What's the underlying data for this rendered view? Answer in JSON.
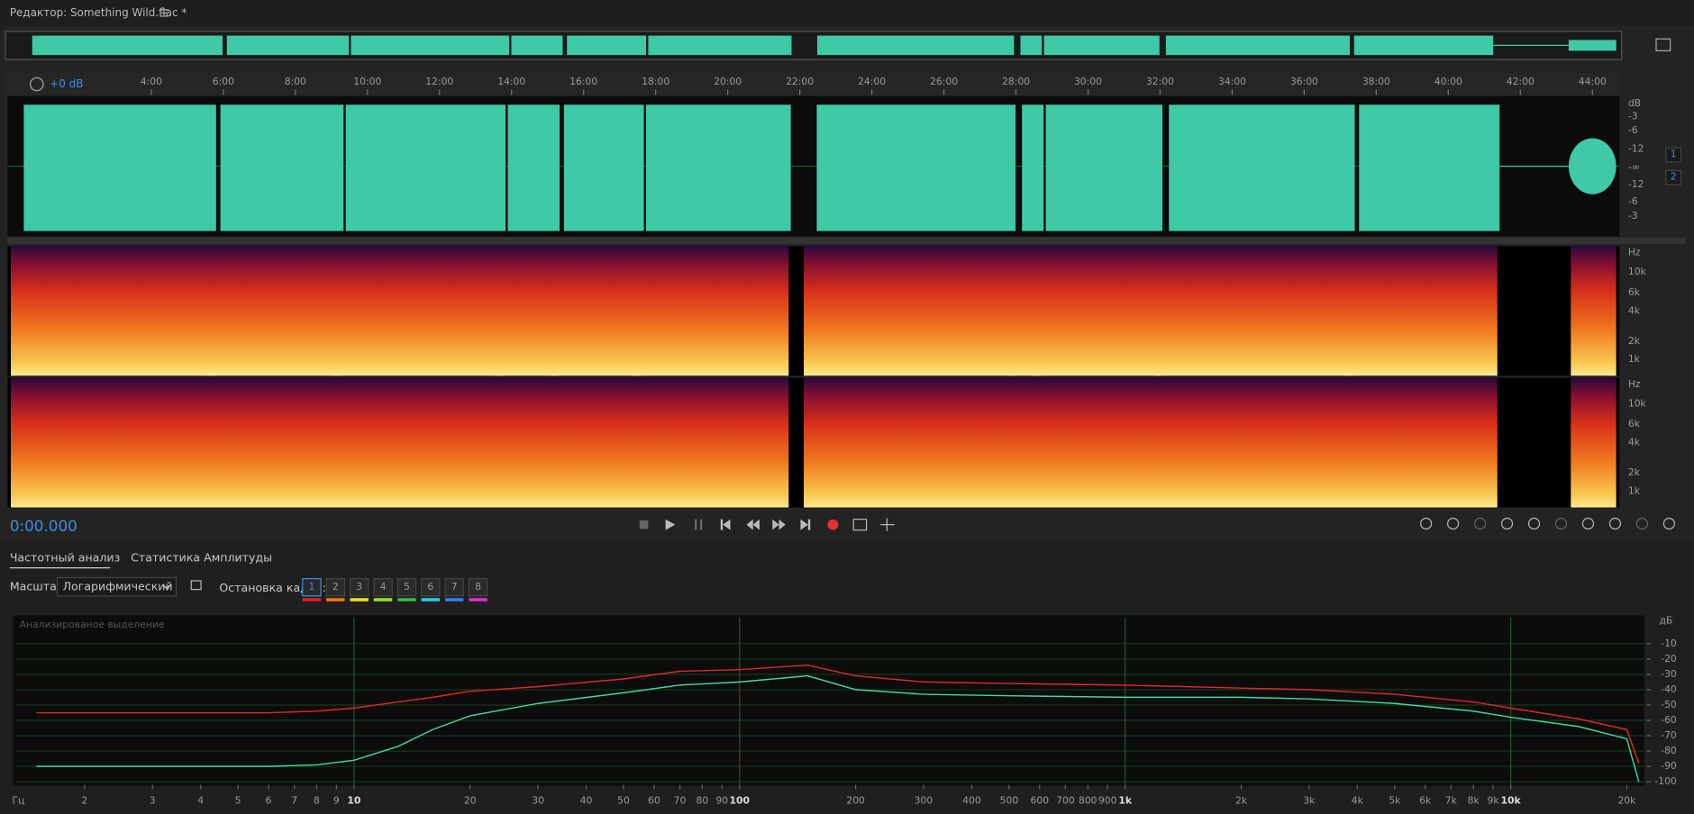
{
  "editor": {
    "title": "Редактор: Something Wild.flac *"
  },
  "timeline": {
    "ticks": [
      "4:00",
      "6:00",
      "8:00",
      "10:00",
      "12:00",
      "14:00",
      "16:00",
      "18:00",
      "20:00",
      "22:00",
      "24:00",
      "26:00",
      "28:00",
      "30:00",
      "32:00",
      "34:00",
      "36:00",
      "38:00",
      "40:00",
      "42:00",
      "44:00"
    ],
    "gain": "+0 dB"
  },
  "waveform": {
    "db_scale": [
      "dB",
      "-3",
      "-6",
      "-12",
      "-∞",
      "-12",
      "-6",
      "-3"
    ],
    "channels": [
      "1",
      "2"
    ]
  },
  "spectrogram": {
    "hz_scale": [
      "Hz",
      "10k",
      "6k",
      "4k",
      "2k",
      "1k"
    ]
  },
  "transport": {
    "time": "0:00.000"
  },
  "panel": {
    "tabs": [
      "Частотный анализ",
      "Статистика Амплитуды"
    ],
    "scale_label": "Масштаб:",
    "scale_value": "Логарифмический",
    "freeze_label": "Остановка кадра:",
    "freeze_frames": [
      {
        "label": "1",
        "color": "#e02020"
      },
      {
        "label": "2",
        "color": "#f07818"
      },
      {
        "label": "3",
        "color": "#f0e020"
      },
      {
        "label": "4",
        "color": "#90e020"
      },
      {
        "label": "5",
        "color": "#30c040"
      },
      {
        "label": "6",
        "color": "#20d0e0"
      },
      {
        "label": "7",
        "color": "#3080f0"
      },
      {
        "label": "8",
        "color": "#e030d0"
      }
    ]
  },
  "chart_data": {
    "type": "line",
    "annotation": "Анализированое выделение",
    "x_unit": "Гц",
    "y_unit": "дБ",
    "xscale": "log",
    "grid": true,
    "x": [
      1.5,
      3,
      6,
      8,
      10,
      13,
      16,
      20,
      30,
      50,
      70,
      100,
      150,
      200,
      300,
      500,
      1000,
      2000,
      3000,
      5000,
      8000,
      10000,
      15000,
      20000,
      21500
    ],
    "series": [
      {
        "color": "#e02828",
        "values": [
          -55,
          -55,
          -55,
          -54,
          -52,
          -48,
          -45,
          -41,
          -38,
          -33,
          -28,
          -27,
          -24,
          -31,
          -35,
          -36,
          -37,
          -39,
          -40,
          -43,
          -48,
          -52,
          -59,
          -66,
          -88
        ]
      },
      {
        "color": "#40d8a0",
        "values": [
          -90,
          -90,
          -90,
          -89,
          -86,
          -77,
          -66,
          -57,
          -49,
          -42,
          -37,
          -35,
          -31,
          -40,
          -43,
          -44,
          -45,
          -45,
          -46,
          -49,
          -54,
          -58,
          -64,
          -72,
          -100
        ]
      }
    ],
    "xlim": [
      1.33,
      22200
    ],
    "ylim": [
      -102,
      7
    ],
    "xticks": [
      2,
      3,
      4,
      5,
      6,
      7,
      8,
      9,
      10,
      20,
      30,
      40,
      50,
      60,
      70,
      80,
      90,
      100,
      200,
      300,
      400,
      500,
      600,
      700,
      800,
      900,
      {
        "value": 1000,
        "label": "1k"
      },
      {
        "value": 2000,
        "label": "2k"
      },
      {
        "value": 3000,
        "label": "3k"
      },
      {
        "value": 4000,
        "label": "4k"
      },
      {
        "value": 5000,
        "label": "5k"
      },
      {
        "value": 6000,
        "label": "6k"
      },
      {
        "value": 7000,
        "label": "7k"
      },
      {
        "value": 8000,
        "label": "8k"
      },
      {
        "value": 9000,
        "label": "9k"
      },
      {
        "value": 10000,
        "label": "10k"
      },
      {
        "value": 20000,
        "label": "20k"
      }
    ],
    "yticks": [
      -10,
      -20,
      -30,
      -40,
      -50,
      -60,
      -70,
      -80,
      -90,
      -100
    ]
  }
}
